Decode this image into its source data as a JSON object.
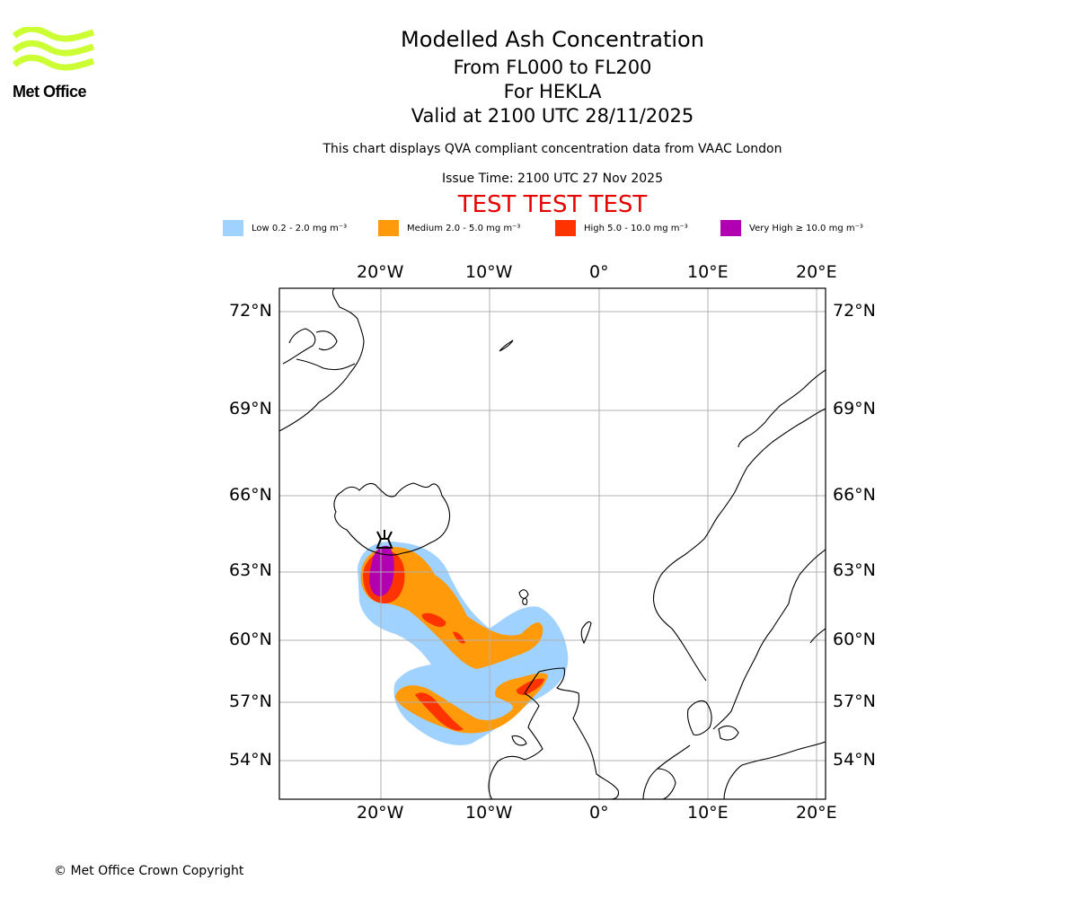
{
  "logo": {
    "text": "Met Office",
    "color": "#ccff33"
  },
  "titles": {
    "line1": "Modelled Ash Concentration",
    "line2": "From FL000 to FL200",
    "line3": "For HEKLA",
    "line4": "Valid at 2100 UTC 28/11/2025"
  },
  "subtitle": "This chart displays QVA compliant concentration data from VAAC London",
  "issue_time": "Issue Time: 2100 UTC 27 Nov 2025",
  "test_banner": "TEST TEST TEST",
  "legend": [
    {
      "label": "Low 0.2 - 2.0 mg m⁻³",
      "color": "#a0d2ff"
    },
    {
      "label": "Medium 2.0 - 5.0 mg m⁻³",
      "color": "#ff9a0a"
    },
    {
      "label": "High 5.0 - 10.0 mg m⁻³",
      "color": "#ff3300"
    },
    {
      "label": "Very High  ≥  10.0 mg m⁻³",
      "color": "#b000b0"
    }
  ],
  "map": {
    "longitude_ticks": [
      "20°W",
      "10°W",
      "0°",
      "10°E",
      "20°E"
    ],
    "latitude_ticks": [
      "72°N",
      "69°N",
      "66°N",
      "63°N",
      "60°N",
      "57°N",
      "54°N"
    ],
    "volcano_name": "HEKLA",
    "grid_color": "#b0b0b0"
  },
  "copyright": "© Met Office Crown Copyright"
}
